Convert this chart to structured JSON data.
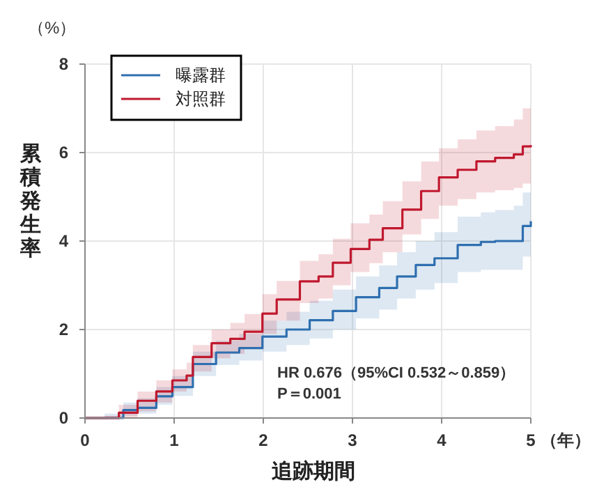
{
  "chart_data": {
    "type": "step",
    "xlabel": "追跡期間",
    "ylabel": "累積発生率",
    "xlim": [
      0,
      5
    ],
    "xticks": [
      0,
      1,
      2,
      3,
      4,
      5
    ],
    "ylim": [
      0,
      8
    ],
    "yticks": [
      0,
      2,
      4,
      6,
      8
    ],
    "grid": true,
    "legend": "top left",
    "line_style": "solid",
    "marker": "none",
    "annotations": [
      "（%）",
      "（年）",
      "HR 0.676（95%CI 0.532～0.859）",
      "P＝0.001"
    ],
    "series": [
      {
        "name": "曝露群",
        "color": "#2e6fb0",
        "x": [
          0,
          0.22,
          0.43,
          0.59,
          0.8,
          0.98,
          1.21,
          1.47,
          1.73,
          1.99,
          2.26,
          2.52,
          2.78,
          3.04,
          3.3,
          3.5,
          3.71,
          3.92,
          4.18,
          4.44,
          4.6,
          4.81,
          4.91,
          5
        ],
        "values": [
          0,
          0,
          0.18,
          0.23,
          0.49,
          0.7,
          1.22,
          1.48,
          1.58,
          1.84,
          2.0,
          2.21,
          2.42,
          2.73,
          2.94,
          3.2,
          3.46,
          3.61,
          3.91,
          3.98,
          4.0,
          4.0,
          4.34,
          4.45
        ],
        "lower": [
          0,
          0,
          0.05,
          0.1,
          0.3,
          0.5,
          0.95,
          1.2,
          1.3,
          1.5,
          1.65,
          1.8,
          2.0,
          2.25,
          2.45,
          2.7,
          2.9,
          3.05,
          3.3,
          3.35,
          3.35,
          3.35,
          3.65,
          3.7
        ],
        "upper": [
          0,
          0.1,
          0.35,
          0.45,
          0.7,
          0.95,
          1.5,
          1.75,
          1.9,
          2.2,
          2.4,
          2.65,
          2.9,
          3.2,
          3.45,
          3.75,
          4.0,
          4.2,
          4.55,
          4.65,
          4.7,
          4.8,
          5.1,
          5.2
        ]
      },
      {
        "name": "対照群",
        "color": "#c0182e",
        "x": [
          0,
          0.22,
          0.38,
          0.59,
          0.8,
          0.98,
          1.14,
          1.21,
          1.42,
          1.63,
          1.79,
          1.99,
          2.15,
          2.41,
          2.62,
          2.78,
          2.98,
          3.19,
          3.34,
          3.56,
          3.77,
          3.97,
          4.18,
          4.39,
          4.6,
          4.81,
          4.91,
          5
        ],
        "values": [
          0,
          0,
          0.12,
          0.39,
          0.6,
          0.85,
          0.96,
          1.38,
          1.69,
          1.79,
          1.95,
          2.36,
          2.68,
          3.09,
          3.2,
          3.51,
          3.82,
          4.03,
          4.29,
          4.71,
          5.13,
          5.44,
          5.61,
          5.8,
          5.88,
          5.96,
          6.14,
          6.17
        ],
        "lower": [
          0,
          0,
          0,
          0.15,
          0.35,
          0.6,
          0.7,
          1.05,
          1.35,
          1.45,
          1.6,
          1.9,
          2.2,
          2.6,
          2.7,
          3.0,
          3.3,
          3.5,
          3.75,
          4.15,
          4.5,
          4.8,
          4.95,
          5.1,
          5.15,
          5.2,
          5.3,
          5.25
        ],
        "upper": [
          0,
          0.05,
          0.3,
          0.6,
          0.85,
          1.1,
          1.25,
          1.65,
          2.0,
          2.15,
          2.35,
          2.8,
          3.1,
          3.55,
          3.7,
          4.05,
          4.4,
          4.6,
          4.9,
          5.35,
          5.8,
          6.1,
          6.3,
          6.5,
          6.6,
          6.75,
          7.0,
          7.2
        ]
      }
    ]
  }
}
